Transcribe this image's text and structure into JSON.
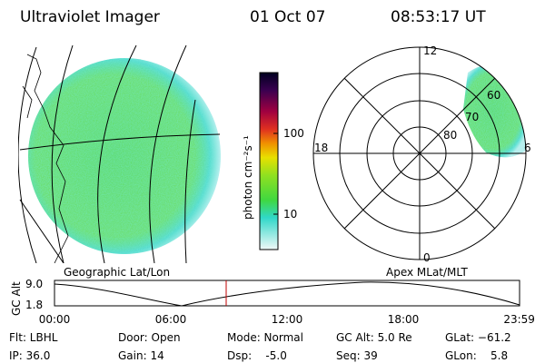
{
  "header": {
    "instrument": "Ultraviolet Imager",
    "date": "01 Oct 07",
    "time": "08:53:17 UT"
  },
  "colorbar": {
    "label": "photon cm⁻²s⁻¹",
    "ticks": [
      "100",
      "10"
    ]
  },
  "polar": {
    "mlt_labels": [
      "12",
      "18",
      "6",
      "0"
    ],
    "mlat_labels": [
      "60",
      "70",
      "80"
    ]
  },
  "panel_labels": [
    "Geographic Lat/Lon",
    "Apex MLat/MLT"
  ],
  "timeline": {
    "ylabel": "GC Alt",
    "yticks": [
      "9.0",
      "1.8"
    ],
    "xticks": [
      "00:00",
      "06:00",
      "12:00",
      "18:00",
      "23:59"
    ]
  },
  "footer": [
    [
      "Flt: LBHL",
      "Door: Open",
      "Mode: Normal",
      "GC Alt: 5.0 Re",
      "GLat: −61.2"
    ],
    [
      "IP: 36.0",
      "Gain: 14",
      "Dsp:    -5.0",
      "Seq: 39",
      "GLon:    5.8"
    ]
  ]
}
